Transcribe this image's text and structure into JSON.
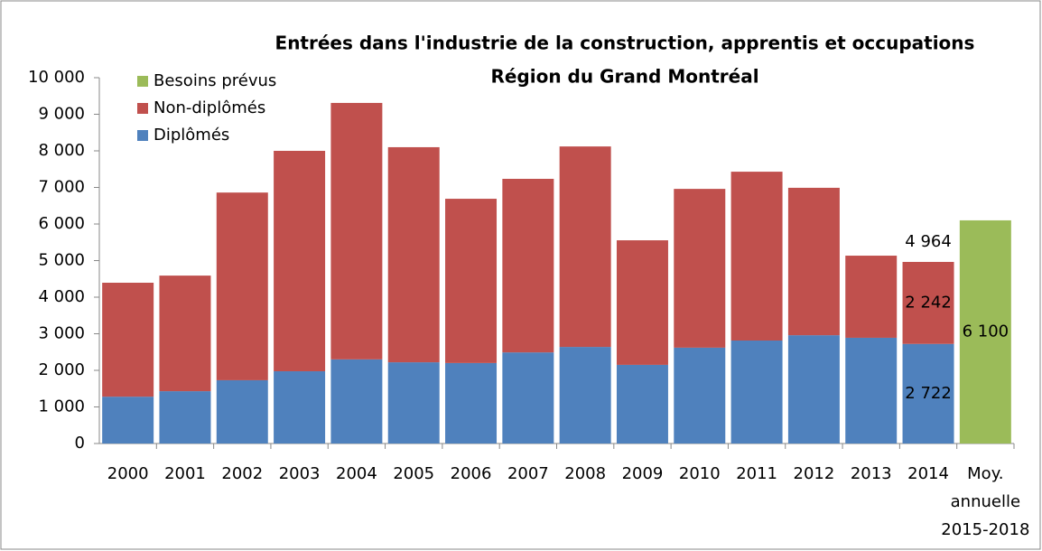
{
  "chart_data": {
    "type": "stacked_bar",
    "title": "Entrées dans l'industrie de la construction,  apprentis et occupations",
    "subtitle": "Région du Grand Montréal",
    "categories": [
      "2000",
      "2001",
      "2002",
      "2003",
      "2004",
      "2005",
      "2006",
      "2007",
      "2008",
      "2009",
      "2010",
      "2011",
      "2012",
      "2013",
      "2014",
      "Moy.\nannuelle\n2015-2018"
    ],
    "series": [
      {
        "name": "Diplômés",
        "color": "#4f81bd",
        "values": [
          1280,
          1430,
          1730,
          1975,
          2300,
          2220,
          2200,
          2490,
          2640,
          2150,
          2620,
          2815,
          2960,
          2890,
          2722,
          null
        ],
        "value_labels": [
          null,
          null,
          null,
          null,
          null,
          null,
          null,
          null,
          null,
          null,
          null,
          null,
          null,
          null,
          "2 722",
          null
        ]
      },
      {
        "name": "Non-diplômés",
        "color": "#c0504d",
        "values": [
          3115,
          3160,
          5130,
          6025,
          7010,
          5880,
          4490,
          4745,
          5480,
          3405,
          4340,
          4615,
          4030,
          2245,
          2242,
          null
        ],
        "value_labels": [
          null,
          null,
          null,
          null,
          null,
          null,
          null,
          null,
          null,
          null,
          null,
          null,
          null,
          null,
          "2 242",
          null
        ]
      },
      {
        "name": "Besoins prévus",
        "color": "#9bbb59",
        "values": [
          null,
          null,
          null,
          null,
          null,
          null,
          null,
          null,
          null,
          null,
          null,
          null,
          null,
          null,
          null,
          6100
        ],
        "value_labels": [
          null,
          null,
          null,
          null,
          null,
          null,
          null,
          null,
          null,
          null,
          null,
          null,
          null,
          null,
          null,
          "6 100"
        ]
      }
    ],
    "annotations": [
      {
        "text": "4 964",
        "category": "2014"
      }
    ],
    "ylim": [
      0,
      10000
    ],
    "yticks": [
      0,
      {
        "value": 1000,
        "label": "1 000"
      },
      {
        "value": 2000,
        "label": "2 000"
      },
      {
        "value": 3000,
        "label": "3 000"
      },
      {
        "value": 4000,
        "label": "4 000"
      },
      {
        "value": 5000,
        "label": "5 000"
      },
      {
        "value": 6000,
        "label": "6 000"
      },
      {
        "value": 7000,
        "label": "7 000"
      },
      {
        "value": 8000,
        "label": "8 000"
      },
      {
        "value": 9000,
        "label": "9 000"
      },
      {
        "value": 10000,
        "label": "10 000"
      }
    ],
    "legend": "top-left",
    "grid": false
  }
}
